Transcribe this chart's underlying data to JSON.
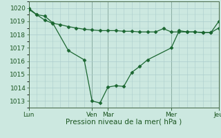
{
  "background_color": "#cce8e0",
  "grid_color": "#aacccc",
  "line_color": "#1a6630",
  "marker_color": "#1a6630",
  "xlabel": "Pression niveau de la mer( hPa )",
  "ylim": [
    1012.5,
    1020.5
  ],
  "yticks": [
    1013,
    1014,
    1015,
    1016,
    1017,
    1018,
    1019,
    1020
  ],
  "day_labels": [
    "Lun",
    "Ven",
    "Mar",
    "Mer",
    "Jeu"
  ],
  "day_positions": [
    0,
    72,
    90,
    162,
    216
  ],
  "xlim": [
    0,
    216
  ],
  "series1_x": [
    0,
    9,
    18,
    27,
    45,
    63,
    72,
    81,
    90,
    99,
    108,
    117,
    126,
    135,
    162,
    171,
    180,
    189,
    198,
    207,
    216
  ],
  "series1_y": [
    1020.0,
    1019.5,
    1019.4,
    1018.9,
    1016.8,
    1016.1,
    1013.0,
    1012.85,
    1014.05,
    1014.15,
    1014.1,
    1015.15,
    1015.6,
    1016.1,
    1017.0,
    1018.3,
    1018.2,
    1018.2,
    1018.15,
    1018.15,
    1019.0
  ],
  "series2_x": [
    0,
    9,
    18,
    27,
    36,
    45,
    54,
    63,
    72,
    81,
    90,
    99,
    108,
    117,
    126,
    135,
    144,
    153,
    162,
    171,
    180,
    189,
    198,
    207,
    216
  ],
  "series2_y": [
    1019.9,
    1019.5,
    1019.1,
    1018.85,
    1018.75,
    1018.6,
    1018.5,
    1018.4,
    1018.35,
    1018.3,
    1018.3,
    1018.3,
    1018.25,
    1018.25,
    1018.2,
    1018.2,
    1018.2,
    1018.45,
    1018.2,
    1018.2,
    1018.2,
    1018.2,
    1018.15,
    1018.15,
    1018.5
  ],
  "ylabel_fontsize": 6.5,
  "xlabel_fontsize": 7.5,
  "xtick_fontsize": 6.5,
  "ytick_fontsize": 6.5
}
